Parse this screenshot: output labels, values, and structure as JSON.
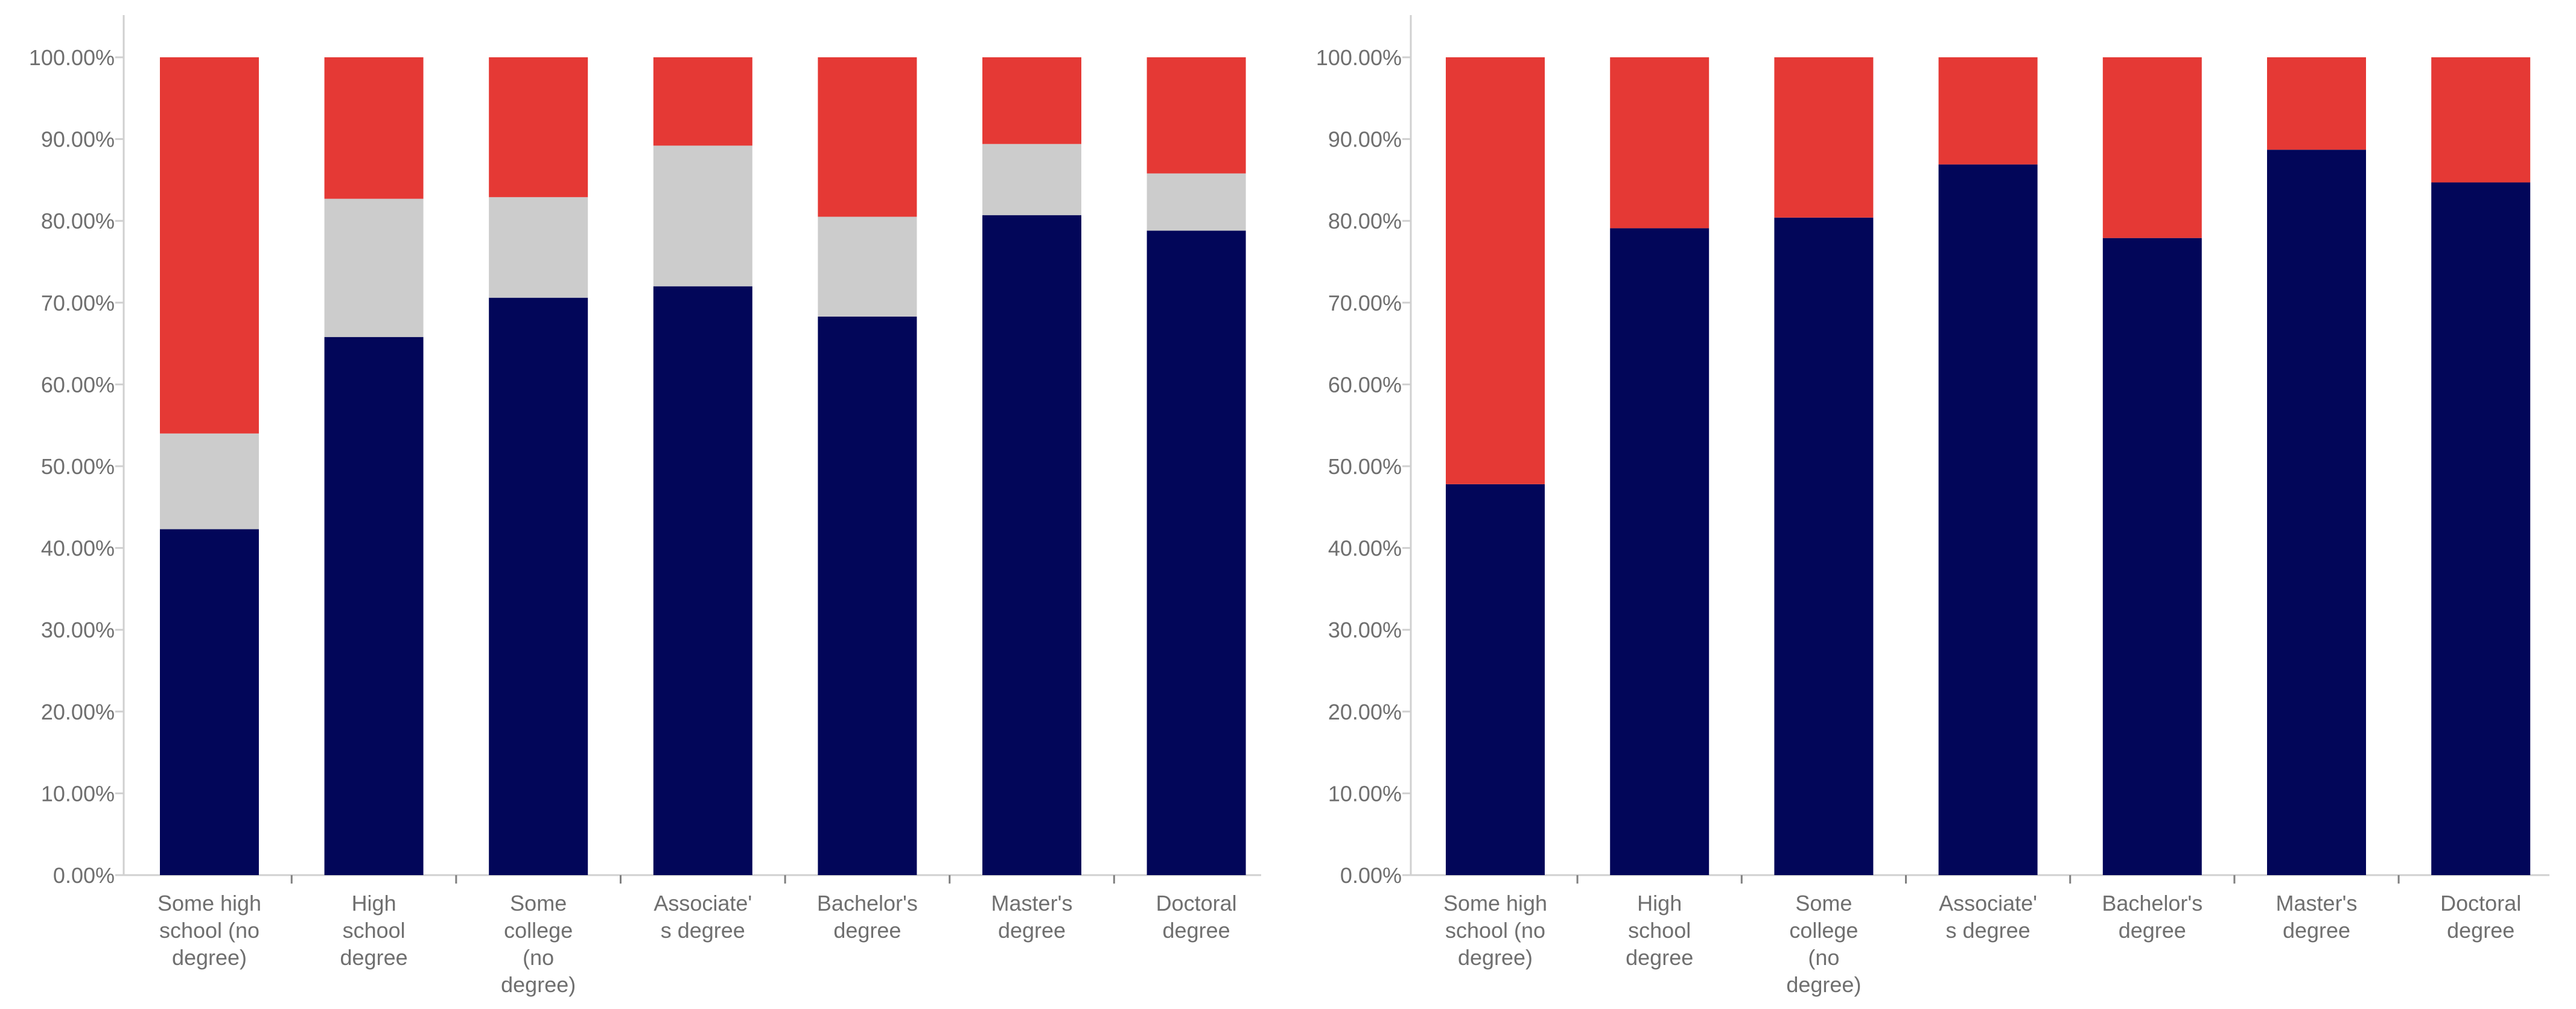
{
  "chart_data": [
    {
      "type": "bar",
      "stacked": true,
      "categories": [
        [
          "Some high",
          "school (no",
          "degree)"
        ],
        [
          "High",
          "school",
          "degree"
        ],
        [
          "Some",
          "college",
          "(no",
          "degree)"
        ],
        [
          "Associate'",
          "s degree"
        ],
        [
          "Bachelor's",
          "degree"
        ],
        [
          "Master's",
          "degree"
        ],
        [
          "Doctoral",
          "degree"
        ]
      ],
      "ylim": [
        0,
        100
      ],
      "ytick_step": 10,
      "ytick_labels": [
        "0.00%",
        "10.00%",
        "20.00%",
        "30.00%",
        "40.00%",
        "50.00%",
        "60.00%",
        "70.00%",
        "80.00%",
        "90.00%",
        "100.00%"
      ],
      "series": [
        {
          "name": "bottom",
          "color": "#020659",
          "values": [
            42.3,
            65.8,
            70.6,
            72.0,
            68.3,
            80.7,
            78.8
          ]
        },
        {
          "name": "middle",
          "color": "#cccccc",
          "values": [
            11.7,
            16.9,
            12.3,
            17.2,
            12.2,
            8.7,
            7.0
          ]
        },
        {
          "name": "top",
          "color": "#e53935",
          "values": [
            46.0,
            17.3,
            17.1,
            10.8,
            19.5,
            10.6,
            14.2
          ]
        }
      ],
      "title": "",
      "xlabel": "",
      "ylabel": "",
      "legend": "none",
      "grid": false
    },
    {
      "type": "bar",
      "stacked": true,
      "categories": [
        [
          "Some high",
          "school (no",
          "degree)"
        ],
        [
          "High",
          "school",
          "degree"
        ],
        [
          "Some",
          "college",
          "(no",
          "degree)"
        ],
        [
          "Associate'",
          "s degree"
        ],
        [
          "Bachelor's",
          "degree"
        ],
        [
          "Master's",
          "degree"
        ],
        [
          "Doctoral",
          "degree"
        ]
      ],
      "ylim": [
        0,
        100
      ],
      "ytick_step": 10,
      "ytick_labels": [
        "0.00%",
        "10.00%",
        "20.00%",
        "30.00%",
        "40.00%",
        "50.00%",
        "60.00%",
        "70.00%",
        "80.00%",
        "90.00%",
        "100.00%"
      ],
      "series": [
        {
          "name": "bottom",
          "color": "#020659",
          "values": [
            47.8,
            79.1,
            80.4,
            86.9,
            77.9,
            88.7,
            84.7
          ]
        },
        {
          "name": "top",
          "color": "#e53935",
          "values": [
            52.2,
            20.9,
            19.6,
            13.1,
            22.1,
            11.3,
            15.3
          ]
        }
      ],
      "title": "",
      "xlabel": "",
      "ylabel": "",
      "legend": "none",
      "grid": false
    }
  ]
}
